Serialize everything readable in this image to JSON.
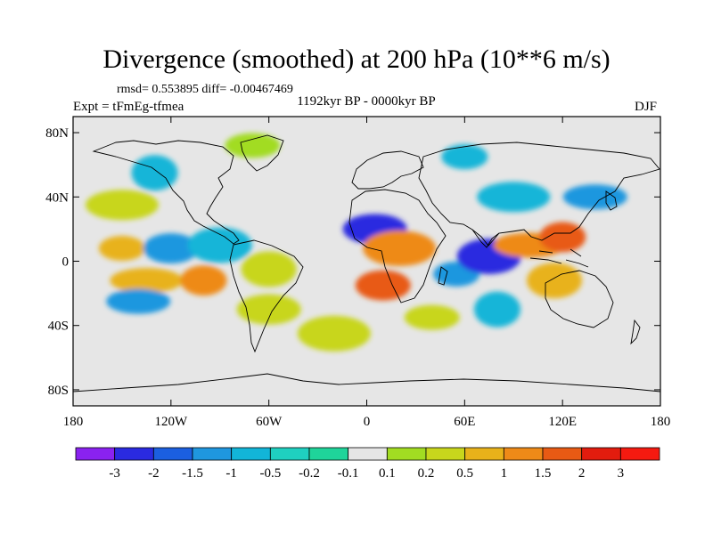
{
  "title": "Divergence (smoothed) at 200 hPa (10**6 m/s)",
  "stats": "rmsd= 0.553895 diff= -0.00467469",
  "experiment": "Expt = tFmEg-tfmea",
  "period": "1192kyr BP - 0000kyr BP",
  "season": "DJF",
  "map": {
    "projection": "cylindrical-equidistant",
    "lon_range": [
      -180,
      180
    ],
    "lat_range": [
      -90,
      90
    ],
    "x_ticks": [
      "180",
      "120W",
      "60W",
      "0",
      "60E",
      "120E",
      "180"
    ],
    "y_ticks": [
      "80N",
      "40N",
      "0",
      "40S",
      "80S"
    ],
    "background_color": "#e6e6e6"
  },
  "colorbar": {
    "labels": [
      "-3",
      "-2",
      "-1.5",
      "-1",
      "-0.5",
      "-0.2",
      "-0.1",
      "0.1",
      "0.2",
      "0.5",
      "1",
      "1.5",
      "2",
      "3"
    ],
    "colors": [
      "#8a22f0",
      "#2a2ae0",
      "#1b5fe0",
      "#1f97df",
      "#12b5d8",
      "#1fd0c0",
      "#1fd49a",
      "#e6e6e6",
      "#a2dc22",
      "#c8d61c",
      "#e8b21a",
      "#ee8a18",
      "#e85a14",
      "#e21c0e",
      "#f51a10"
    ]
  },
  "field_patches": [
    {
      "lon": -150,
      "lat": 8,
      "level": "1",
      "color": "#e8b21a"
    },
    {
      "lon": -120,
      "lat": 8,
      "level": "-1",
      "color": "#1f97df"
    },
    {
      "lon": -90,
      "lat": 10,
      "level": "-0.5",
      "color": "#12b5d8"
    },
    {
      "lon": -135,
      "lat": -12,
      "level": "1",
      "color": "#e8b21a"
    },
    {
      "lon": -100,
      "lat": -12,
      "level": "1.5",
      "color": "#ee8a18"
    },
    {
      "lon": -60,
      "lat": -5,
      "level": "0.5",
      "color": "#c8d61c"
    },
    {
      "lon": -140,
      "lat": -25,
      "level": "-1",
      "color": "#1f97df"
    },
    {
      "lon": -150,
      "lat": 35,
      "level": "0.5",
      "color": "#c8d61c"
    },
    {
      "lon": -130,
      "lat": 55,
      "level": "-0.5",
      "color": "#12b5d8"
    },
    {
      "lon": -70,
      "lat": 72,
      "level": "0.2",
      "color": "#a2dc22"
    },
    {
      "lon": 5,
      "lat": 20,
      "level": "-2",
      "color": "#2a2ae0"
    },
    {
      "lon": 20,
      "lat": 8,
      "level": "1.5",
      "color": "#ee8a18"
    },
    {
      "lon": 55,
      "lat": -8,
      "level": "-1",
      "color": "#1f97df"
    },
    {
      "lon": 10,
      "lat": -15,
      "level": "2",
      "color": "#e85a14"
    },
    {
      "lon": 75,
      "lat": 3,
      "level": "-2",
      "color": "#2a2ae0"
    },
    {
      "lon": 100,
      "lat": 10,
      "level": "1.5",
      "color": "#ee8a18"
    },
    {
      "lon": 120,
      "lat": 15,
      "level": "2",
      "color": "#e85a14"
    },
    {
      "lon": 115,
      "lat": -12,
      "level": "1",
      "color": "#e8b21a"
    },
    {
      "lon": 140,
      "lat": 40,
      "level": "-1",
      "color": "#1f97df"
    },
    {
      "lon": 90,
      "lat": 40,
      "level": "-0.5",
      "color": "#12b5d8"
    },
    {
      "lon": 80,
      "lat": -30,
      "level": "-0.5",
      "color": "#12b5d8"
    },
    {
      "lon": 40,
      "lat": -35,
      "level": "0.5",
      "color": "#c8d61c"
    },
    {
      "lon": -60,
      "lat": -30,
      "level": "0.5",
      "color": "#c8d61c"
    },
    {
      "lon": -20,
      "lat": -45,
      "level": "0.5",
      "color": "#c8d61c"
    },
    {
      "lon": 60,
      "lat": 65,
      "level": "-0.5",
      "color": "#12b5d8"
    }
  ]
}
